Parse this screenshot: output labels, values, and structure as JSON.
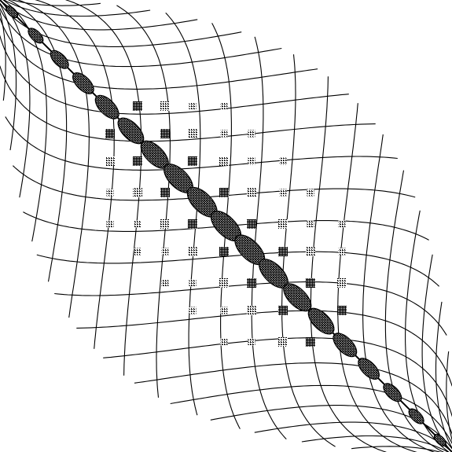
{
  "figure": {
    "description_kind": "sparse-matrix-like diagonal lattice pattern",
    "background_color": "#ffffff",
    "ink_color": "#000000",
    "dense_block_fill": "#111111",
    "hatch_color": "#222222"
  }
}
